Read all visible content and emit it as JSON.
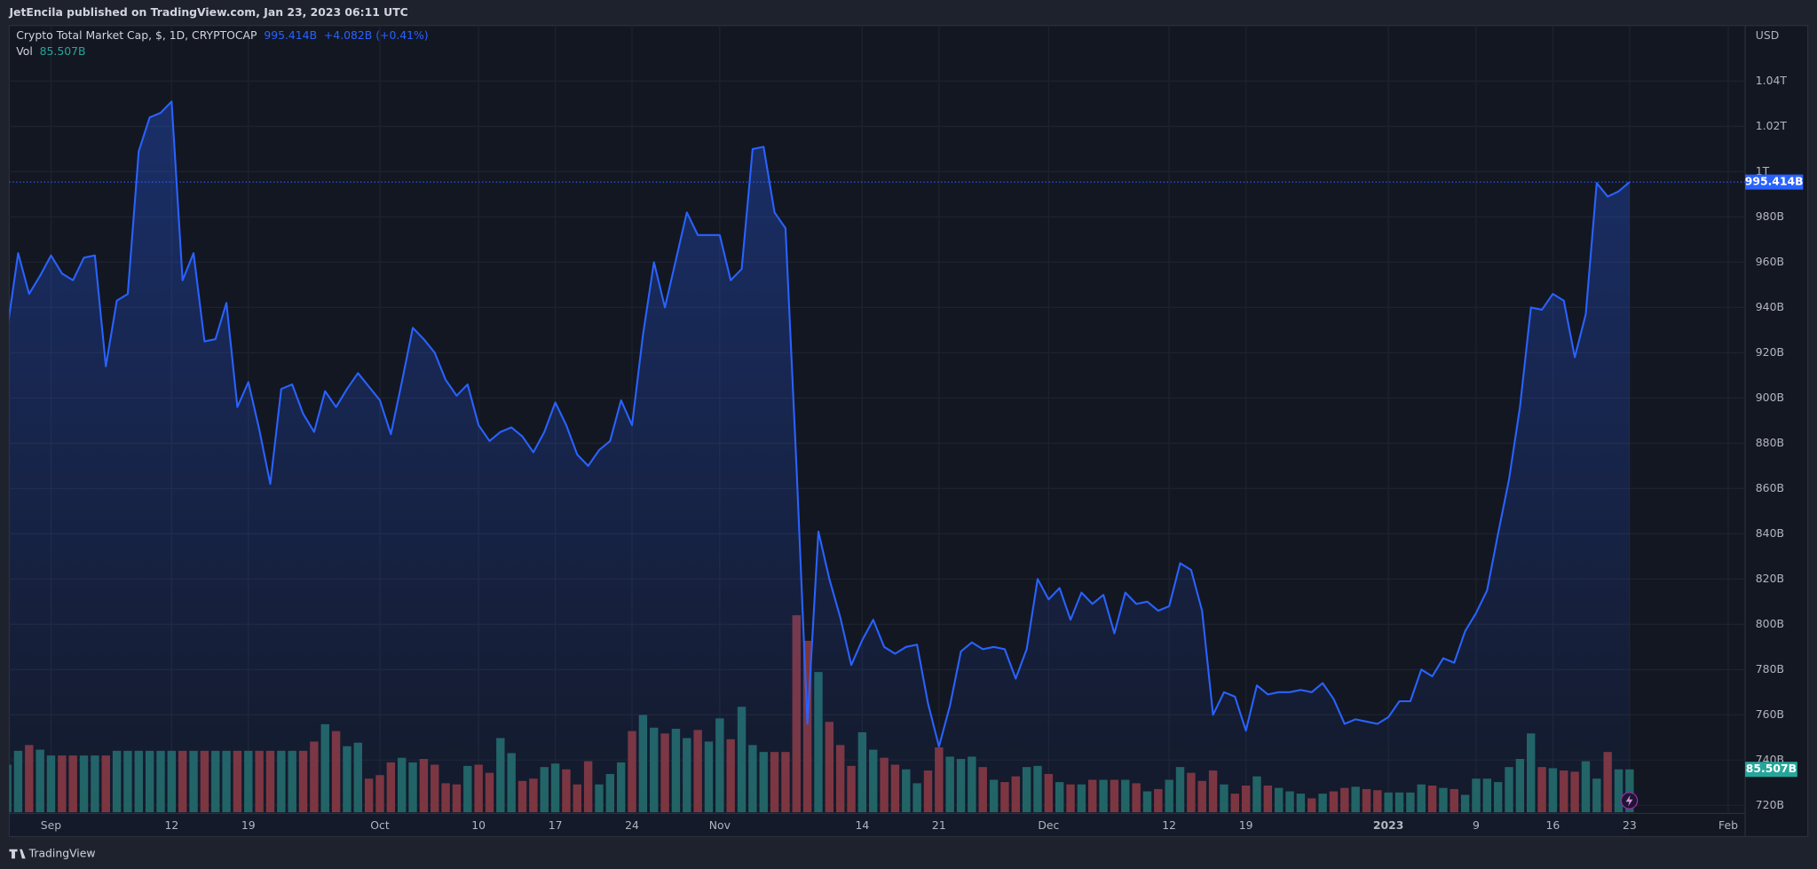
{
  "header": {
    "published_line": "JetEncila published on TradingView.com, Jan 23, 2023 06:11 UTC"
  },
  "footer": {
    "brand": "TradingView"
  },
  "chart_data": {
    "type": "area",
    "y_label": "USD",
    "grid": true,
    "ylim": [
      706.2,
      1064.6
    ],
    "yticks": [
      {
        "value": 720,
        "label": "720B"
      },
      {
        "value": 740,
        "label": "740B"
      },
      {
        "value": 760,
        "label": "760B"
      },
      {
        "value": 780,
        "label": "780B"
      },
      {
        "value": 800,
        "label": "800B"
      },
      {
        "value": 820,
        "label": "820B"
      },
      {
        "value": 840,
        "label": "840B"
      },
      {
        "value": 860,
        "label": "860B"
      },
      {
        "value": 880,
        "label": "880B"
      },
      {
        "value": 900,
        "label": "900B"
      },
      {
        "value": 920,
        "label": "920B"
      },
      {
        "value": 940,
        "label": "940B"
      },
      {
        "value": 960,
        "label": "960B"
      },
      {
        "value": 980,
        "label": "980B"
      },
      {
        "value": 1000,
        "label": "1T"
      },
      {
        "value": 1020,
        "label": "1.02T"
      },
      {
        "value": 1040,
        "label": "1.04T"
      }
    ],
    "categories": [
      null,
      null,
      null,
      null,
      "Sep",
      null,
      null,
      null,
      null,
      null,
      null,
      null,
      null,
      null,
      null,
      "12",
      null,
      null,
      null,
      null,
      null,
      null,
      "19",
      null,
      null,
      null,
      null,
      null,
      null,
      null,
      null,
      null,
      null,
      null,
      "Oct",
      null,
      null,
      null,
      null,
      null,
      null,
      null,
      null,
      "10",
      null,
      null,
      null,
      null,
      null,
      null,
      "17",
      null,
      null,
      null,
      null,
      null,
      null,
      "24",
      null,
      null,
      null,
      null,
      null,
      null,
      null,
      "Nov",
      null,
      null,
      null,
      null,
      null,
      null,
      null,
      null,
      null,
      null,
      null,
      null,
      "14",
      null,
      null,
      null,
      null,
      null,
      null,
      "21",
      null,
      null,
      null,
      null,
      null,
      null,
      null,
      null,
      null,
      "Dec",
      null,
      null,
      null,
      null,
      null,
      null,
      null,
      null,
      null,
      null,
      "12",
      null,
      null,
      null,
      null,
      null,
      null,
      "19",
      null,
      null,
      null,
      null,
      null,
      null,
      null,
      null,
      null,
      null,
      null,
      null,
      "2023",
      null,
      null,
      null,
      null,
      null,
      null,
      null,
      "9",
      null,
      null,
      null,
      null,
      null,
      null,
      "16",
      null,
      null,
      null,
      null,
      null,
      null,
      "23",
      null,
      null,
      null,
      null,
      null,
      null,
      null,
      null,
      "Feb"
    ],
    "series": [
      {
        "name": "Crypto Total Market Cap, $, 1D, CRYPTOCAP",
        "color": "#2962ff",
        "last_label": "995.414B",
        "change_label": "+4.082B (+0.41%)",
        "values": [
          930,
          964,
          946,
          954,
          963,
          955,
          952,
          962,
          963,
          914,
          943,
          946,
          1009,
          1024,
          1026,
          1031,
          952,
          964,
          925,
          926,
          942,
          896,
          907,
          886,
          862,
          904,
          906,
          893,
          885,
          903,
          896,
          904,
          911,
          905,
          899,
          884,
          907,
          931,
          926,
          920,
          908,
          901,
          906,
          888,
          881,
          885,
          887,
          883,
          876,
          885,
          898,
          888,
          875,
          870,
          877,
          881,
          899,
          888,
          928,
          960,
          940,
          961,
          982,
          972,
          972,
          972,
          952,
          957,
          1010,
          1011,
          982,
          975,
          870,
          756,
          841,
          820,
          803,
          782,
          793,
          802,
          790,
          787,
          790,
          791,
          765,
          746,
          764,
          788,
          792,
          789,
          790,
          789,
          776,
          789,
          820,
          811,
          816,
          802,
          814,
          809,
          813,
          796,
          814,
          809,
          810,
          806,
          808,
          827,
          824,
          806,
          760,
          770,
          768,
          753,
          773,
          769,
          770,
          770,
          771,
          770,
          774,
          767,
          756,
          758,
          757,
          756,
          759,
          766,
          766,
          780,
          777,
          785,
          783,
          797,
          805,
          815,
          840,
          864,
          896,
          940,
          939,
          946,
          943,
          918,
          937,
          995,
          989,
          991.332,
          995.414,
          null,
          null,
          null,
          null,
          null,
          null,
          null,
          null,
          null
        ]
      },
      {
        "name": "Vol",
        "type": "volume",
        "color": "#26a69a",
        "up_color": "#22645f",
        "down_color": "#803438",
        "last_label": "85.507B",
        "values": [
          94.8,
          122.5,
          134.0,
          124.8,
          113.2,
          113.2,
          113.2,
          113.2,
          113.2,
          113.2,
          122.5,
          122.5,
          122.5,
          122.5,
          122.5,
          122.5,
          122.5,
          122.5,
          122.5,
          122.5,
          122.5,
          122.5,
          122.5,
          122.5,
          122.5,
          122.5,
          122.5,
          122.5,
          141.0,
          175.6,
          161.8,
          131.7,
          138.7,
          67.0,
          74.0,
          99.4,
          108.6,
          99.4,
          106.3,
          94.8,
          57.8,
          55.5,
          92.4,
          94.8,
          78.6,
          147.9,
          117.9,
          62.4,
          67.0,
          90.1,
          97.1,
          85.5,
          55.5,
          101.7,
          55.5,
          76.3,
          99.4,
          161.8,
          194.1,
          168.7,
          157.1,
          166.4,
          147.9,
          164.1,
          141.0,
          187.2,
          145.6,
          210.3,
          134.0,
          120.2,
          120.2,
          120.2,
          392.9,
          342.0,
          279.6,
          180.3,
          134.0,
          92.4,
          159.5,
          124.8,
          108.6,
          94.8,
          85.5,
          57.8,
          83.2,
          129.4,
          110.9,
          106.3,
          110.9,
          90.1,
          64.7,
          60.1,
          71.6,
          90.1,
          92.4,
          76.3,
          60.1,
          55.5,
          55.5,
          64.7,
          64.7,
          64.7,
          64.7,
          57.8,
          41.6,
          46.2,
          64.7,
          90.1,
          78.6,
          62.4,
          83.2,
          55.5,
          37.0,
          53.2,
          71.6,
          53.2,
          48.5,
          41.6,
          37.0,
          27.7,
          37.0,
          41.6,
          48.5,
          50.8,
          46.2,
          43.9,
          39.3,
          39.3,
          39.3,
          55.5,
          53.2,
          48.5,
          46.2,
          34.7,
          67.0,
          67.0,
          60.1,
          90.1,
          106.3,
          157.1,
          90.1,
          87.8,
          83.2,
          80.9,
          101.7,
          67.0,
          120.2,
          85.5,
          85.507,
          null,
          null,
          null,
          null,
          null,
          null,
          null,
          null,
          null
        ]
      }
    ]
  }
}
